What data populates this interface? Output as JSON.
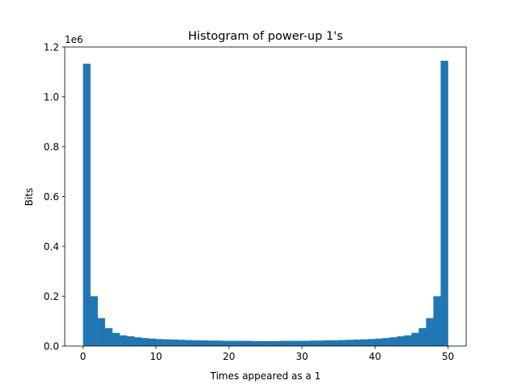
{
  "chart_data": {
    "type": "bar",
    "title": "Histogram of power-up 1's",
    "xlabel": "Times appeared as a 1",
    "ylabel": "Bits",
    "y_offset_label": "1e6",
    "xlim": [
      -2.5,
      52.5
    ],
    "ylim": [
      0,
      1200000
    ],
    "x_ticks": [
      0,
      10,
      20,
      30,
      40,
      50
    ],
    "y_ticks": [
      0,
      200000,
      400000,
      600000,
      800000,
      1000000,
      1200000
    ],
    "x_tick_labels": [
      "0",
      "10",
      "20",
      "30",
      "40",
      "50"
    ],
    "y_tick_labels": [
      "0.0",
      "0.2",
      "0.4",
      "0.6",
      "0.8",
      "1.0",
      "1.2"
    ],
    "bin_start": 0,
    "bin_width": 1,
    "bar_color": "#1f77b4",
    "grid": false,
    "legend": "none",
    "values": [
      1133000,
      200000,
      112000,
      72000,
      53000,
      43000,
      39000,
      35000,
      32000,
      30000,
      28000,
      27000,
      26000,
      25000,
      24000,
      23000,
      23000,
      22000,
      22000,
      21000,
      21000,
      21000,
      21000,
      20000,
      20000,
      20000,
      20000,
      21000,
      21000,
      21000,
      21000,
      22000,
      22000,
      23000,
      23000,
      24000,
      25000,
      26000,
      27000,
      28000,
      30000,
      32000,
      35000,
      39000,
      43000,
      53000,
      72000,
      112000,
      200000,
      1145000
    ]
  }
}
